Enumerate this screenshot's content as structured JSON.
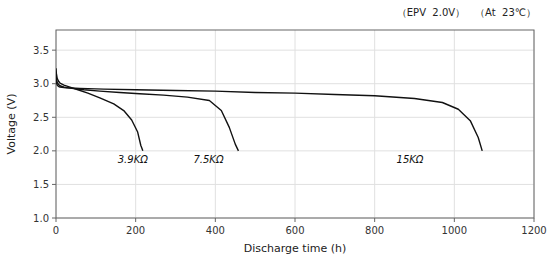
{
  "chart_data": {
    "type": "line",
    "annotation": "（EPV  2.0V）　（At  23℃）",
    "x_label": "Discharge time (h)",
    "y_label": "Voltage (V)",
    "xlim": [
      0,
      1200
    ],
    "ylim": [
      1.0,
      3.8
    ],
    "xticks": [
      0,
      200,
      400,
      600,
      800,
      1000,
      1200
    ],
    "yticks": [
      {
        "value": 1.0,
        "label": "1.0"
      },
      1.5,
      {
        "value": 2.0,
        "label": "2.0"
      },
      2.5,
      {
        "value": 3.0,
        "label": "3.0"
      },
      3.5
    ],
    "grid": true,
    "series": [
      {
        "color": "#111111",
        "x": [
          0,
          1,
          3,
          6,
          10,
          20,
          35,
          55,
          80,
          110,
          145,
          170,
          190,
          205,
          213,
          218
        ],
        "values": [
          3.23,
          3.15,
          3.08,
          3.04,
          3.01,
          2.98,
          2.95,
          2.91,
          2.86,
          2.79,
          2.7,
          2.6,
          2.46,
          2.28,
          2.08,
          2.0
        ]
      },
      {
        "color": "#111111",
        "x": [
          0,
          1,
          3,
          6,
          10,
          20,
          40,
          70,
          110,
          160,
          210,
          270,
          330,
          385,
          415,
          435,
          450,
          458
        ],
        "values": [
          3.16,
          3.07,
          3.02,
          2.99,
          2.97,
          2.95,
          2.93,
          2.91,
          2.89,
          2.87,
          2.85,
          2.83,
          2.8,
          2.75,
          2.6,
          2.35,
          2.1,
          2.0
        ]
      },
      {
        "color": "#111111",
        "x": [
          0,
          1,
          3,
          6,
          10,
          25,
          60,
          120,
          200,
          300,
          400,
          500,
          600,
          700,
          800,
          900,
          970,
          1010,
          1040,
          1060,
          1070
        ],
        "values": [
          3.1,
          3.02,
          2.98,
          2.96,
          2.95,
          2.94,
          2.93,
          2.92,
          2.91,
          2.9,
          2.89,
          2.87,
          2.86,
          2.84,
          2.82,
          2.78,
          2.72,
          2.62,
          2.45,
          2.2,
          2.0
        ]
      }
    ],
    "curve_labels": [
      {
        "text": "3.9KΩ",
        "x": 155,
        "y": 1.87
      },
      {
        "text": "7.5KΩ",
        "x": 345,
        "y": 1.87
      },
      {
        "text": "15KΩ",
        "x": 855,
        "y": 1.87
      }
    ]
  }
}
